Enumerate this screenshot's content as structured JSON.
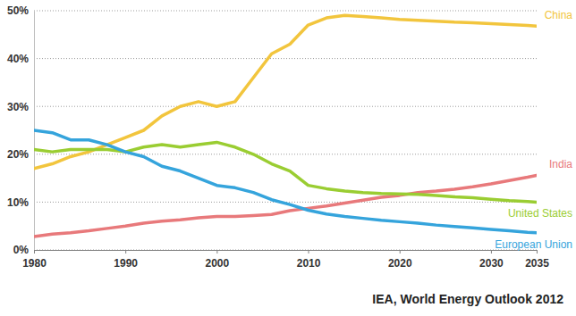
{
  "chart_data": {
    "type": "line",
    "x": [
      1980,
      1982,
      1984,
      1986,
      1988,
      1990,
      1992,
      1994,
      1996,
      1998,
      2000,
      2002,
      2004,
      2006,
      2008,
      2010,
      2012,
      2014,
      2016,
      2018,
      2020,
      2022,
      2024,
      2026,
      2028,
      2030,
      2032,
      2034,
      2035
    ],
    "series": [
      {
        "name": "China",
        "color": "#f2c53d",
        "values": [
          17,
          18,
          19.5,
          20.5,
          22,
          23.5,
          25,
          28,
          30,
          31,
          30,
          31,
          36,
          41,
          43,
          47,
          48.5,
          49,
          48.8,
          48.5,
          48.2,
          48,
          47.8,
          47.6,
          47.5,
          47.3,
          47.1,
          46.9,
          46.8
        ]
      },
      {
        "name": "India",
        "color": "#e8797b",
        "values": [
          2.8,
          3.3,
          3.6,
          4,
          4.5,
          5,
          5.6,
          6,
          6.3,
          6.7,
          7,
          7,
          7.2,
          7.4,
          8.2,
          8.7,
          9.2,
          9.8,
          10.4,
          11,
          11.4,
          12,
          12.3,
          12.7,
          13.2,
          13.8,
          14.5,
          15.2,
          15.6
        ]
      },
      {
        "name": "United States",
        "color": "#9acd32",
        "values": [
          21,
          20.5,
          21,
          21,
          21,
          20.5,
          21.5,
          22,
          21.5,
          22,
          22.5,
          21.5,
          20,
          18,
          16.5,
          13.5,
          12.8,
          12.3,
          12,
          11.8,
          11.7,
          11.6,
          11.4,
          11.1,
          10.9,
          10.6,
          10.3,
          10.1,
          10
        ]
      },
      {
        "name": "European Union",
        "color": "#35a4dc",
        "values": [
          25,
          24.5,
          23,
          23,
          22,
          20.5,
          19.5,
          17.5,
          16.5,
          15,
          13.5,
          13,
          12,
          10.5,
          9.5,
          8.3,
          7.5,
          7,
          6.6,
          6.2,
          5.9,
          5.6,
          5.2,
          4.9,
          4.6,
          4.3,
          4,
          3.7,
          3.6
        ]
      }
    ],
    "xlim": [
      1980,
      2035
    ],
    "xticks": [
      1980,
      1990,
      2000,
      2010,
      2020,
      2030,
      2035
    ],
    "ylim": [
      0,
      50
    ],
    "yticks": [
      {
        "value": 0,
        "label": "0%"
      },
      {
        "value": 10,
        "label": "10%"
      },
      {
        "value": 20,
        "label": "20%"
      },
      {
        "value": 30,
        "label": "30%"
      },
      {
        "value": 40,
        "label": "40%"
      },
      {
        "value": 50,
        "label": "50%"
      }
    ],
    "grid": true,
    "annotations": [
      "IEA, World Energy Outlook 2012"
    ]
  }
}
